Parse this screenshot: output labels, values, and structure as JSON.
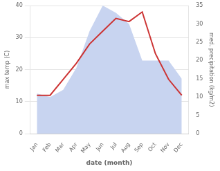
{
  "chart_data": {
    "type": "line",
    "categories": [
      "Jan",
      "Feb",
      "Mar",
      "Apr",
      "May",
      "Jun",
      "Jul",
      "Aug",
      "Sep",
      "Oct",
      "Nov",
      "Dec"
    ],
    "series": [
      {
        "type": "line",
        "color": "#cc3333",
        "values": [
          12,
          12,
          17,
          22,
          28,
          32,
          36,
          35,
          38,
          25,
          17,
          12
        ]
      },
      {
        "type": "area",
        "color": "#c8d4f0",
        "axis": "y2",
        "values": [
          11,
          10,
          12,
          18,
          28,
          35,
          33,
          30,
          20,
          20,
          20,
          15
        ]
      }
    ],
    "xlabel": "date (month)",
    "ylabel": "max temp (C)",
    "y2label": "med. precipitation (kg/m2)",
    "ylim": [
      0,
      40
    ],
    "yticks": [
      0,
      10,
      20,
      30,
      40
    ],
    "y2lim": [
      0,
      35
    ],
    "y2ticks": [
      0,
      5,
      10,
      15,
      20,
      25,
      30,
      35
    ],
    "grid": true
  }
}
